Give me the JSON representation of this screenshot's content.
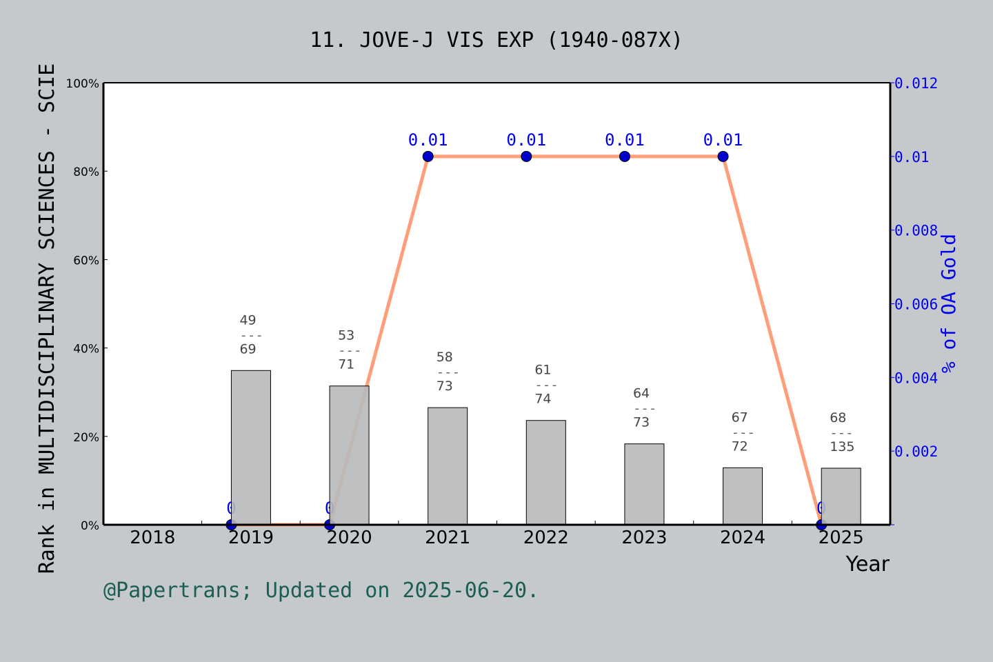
{
  "chart_data": {
    "type": "bar+line",
    "title": "11. JOVE-J VIS EXP (1940-087X)",
    "xlabel": "Year",
    "ylabel": "Rank in MULTIDISCIPLINARY SCIENCES - SCIE",
    "y2label": "% of OA Gold",
    "categories": [
      "2018",
      "2019",
      "2020",
      "2021",
      "2022",
      "2023",
      "2024",
      "2025"
    ],
    "ylim": [
      0,
      100
    ],
    "yticks": [
      "0%",
      "20%",
      "40%",
      "60%",
      "80%",
      "100%"
    ],
    "y2lim": [
      0,
      0.012
    ],
    "y2ticks": [
      "0.002",
      "0.004",
      "0.006",
      "0.008",
      "0.01",
      "0.012"
    ],
    "bars": {
      "values": [
        null,
        34.9,
        31.4,
        26.5,
        23.6,
        18.3,
        12.9,
        12.8
      ],
      "rank": [
        null,
        "49",
        "53",
        "58",
        "61",
        "64",
        "67",
        "68"
      ],
      "total": [
        null,
        "69",
        "71",
        "73",
        "74",
        "73",
        "72",
        "135"
      ],
      "separator": "---",
      "color": "#b8b9ba"
    },
    "line": {
      "values": [
        null,
        0,
        0,
        0.01,
        0.01,
        0.01,
        0.01,
        0
      ],
      "labels": [
        null,
        "0",
        "0",
        "0.01",
        "0.01",
        "0.01",
        "0.01",
        "0"
      ],
      "line_color": "#ff9f7a",
      "marker_color": "#0000cc"
    },
    "grid": false
  },
  "footer": "@Papertrans; Updated on 2025-06-20."
}
